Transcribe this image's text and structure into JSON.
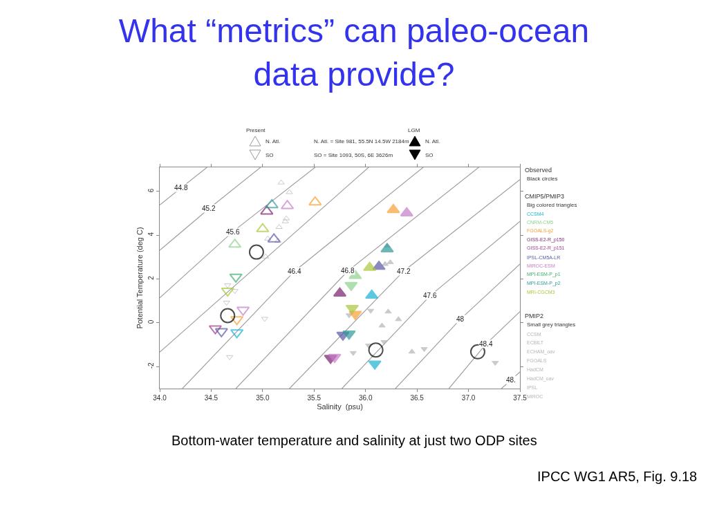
{
  "chart_data": {
    "type": "scatter",
    "title": "What “metrics” can paleo-ocean data provide?",
    "xlabel": "Salinity  (psu)",
    "ylabel": "Potential Temperature (deg C)",
    "xlim": [
      34.0,
      37.5
    ],
    "ylim": [
      -3,
      7.1
    ],
    "xticks": [
      {
        "value": 34.0,
        "label": "34.0"
      },
      {
        "value": 34.5,
        "label": "34.5"
      },
      {
        "value": 35.0,
        "label": "35.0"
      },
      {
        "value": 35.5,
        "label": "35.5"
      },
      {
        "value": 36.0,
        "label": "36.0"
      },
      {
        "value": 36.5,
        "label": "36.5"
      },
      {
        "value": 37.0,
        "label": "37.0"
      },
      {
        "value": 37.5,
        "label": "37.5"
      }
    ],
    "yticks": [
      -2,
      0,
      2,
      4,
      6
    ],
    "legend": "right",
    "series": [
      {
        "type": "line",
        "name": "44.8",
        "color": "#a0a0a0",
        "x": [
          34.0,
          34.21,
          34.46
        ],
        "values": [
          5.38,
          6.17,
          7.1
        ]
      },
      {
        "type": "line",
        "name": "45.2",
        "color": "#a0a0a0",
        "x": [
          34.0,
          34.48,
          34.98
        ],
        "values": [
          3.31,
          5.22,
          7.1
        ]
      },
      {
        "type": "line",
        "name": "45.6",
        "color": "#a0a0a0",
        "x": [
          34.0,
          34.71,
          35.51
        ],
        "values": [
          1.14,
          4.16,
          7.1
        ]
      },
      {
        "type": "line",
        "color": "#a0a0a0",
        "x": [
          34.0,
          36.03
        ],
        "values": [
          -1.34,
          7.1
        ]
      },
      {
        "type": "line",
        "name": "46.4",
        "color": "#a0a0a0",
        "x": [
          34.22,
          35.31,
          36.56
        ],
        "values": [
          -3,
          2.36,
          7.1
        ]
      },
      {
        "type": "line",
        "name": "46.8",
        "color": "#a0a0a0",
        "x": [
          34.74,
          35.83,
          37.1
        ],
        "values": [
          -3,
          2.38,
          7.1
        ]
      },
      {
        "type": "line",
        "name": "47.2",
        "color": "#a0a0a0",
        "x": [
          35.26,
          36.37,
          37.5
        ],
        "values": [
          -3,
          2.36,
          6.54
        ]
      },
      {
        "type": "line",
        "name": "47.6",
        "color": "#a0a0a0",
        "x": [
          35.77,
          36.63,
          37.5
        ],
        "values": [
          -3,
          1.25,
          4.63
        ]
      },
      {
        "type": "line",
        "name": "48",
        "color": "#a0a0a0",
        "x": [
          36.29,
          36.92,
          37.5
        ],
        "values": [
          -3,
          0.16,
          2.68
        ]
      },
      {
        "type": "line",
        "name": "48.4",
        "color": "#a0a0a0",
        "x": [
          36.81,
          37.17,
          37.5
        ],
        "values": [
          -3,
          -0.97,
          0.51
        ]
      },
      {
        "type": "line",
        "name": "48.",
        "color": "#a0a0a0",
        "x": [
          37.32,
          37.41,
          37.5
        ],
        "values": [
          -3,
          -2.62,
          -2.24
        ]
      },
      {
        "marker": "triangle-open",
        "color": "#b4b4b4",
        "x": [
          35.18,
          35.26,
          35.23,
          35.22,
          35.16,
          35.05,
          35.15,
          35.03
        ],
        "values": [
          6.4,
          5.96,
          4.76,
          4.63,
          4.37,
          3.84,
          3.74,
          3.02
        ]
      },
      {
        "marker": "triangle-down-open",
        "color": "#b4b4b4",
        "x": [
          35.02,
          34.68,
          34.66,
          34.65,
          34.73
        ],
        "values": [
          0.19,
          -1.56,
          1.72,
          0.93,
          1.46
        ]
      },
      {
        "marker": "triangle",
        "color": "#b4b4b4",
        "x": [
          36.21,
          36.24,
          36.19,
          36.22,
          36.32,
          36.16,
          36.45
        ],
        "values": [
          3.52,
          2.76,
          2.68,
          0.51,
          0.16,
          -0.13,
          -1.32
        ]
      },
      {
        "marker": "triangle-down",
        "color": "#b4b4b4",
        "x": [
          36.05,
          35.84,
          36.18,
          35.88,
          36.03,
          36.57,
          37.26
        ],
        "values": [
          0.56,
          0.35,
          -0.87,
          -1.37,
          -1.03,
          -1.19,
          -1.82
        ]
      },
      {
        "name": "CCSM4",
        "color": "#1ab2d4",
        "marker": [
          "triangle-down-open",
          "triangle",
          "triangle-down"
        ],
        "x": [
          34.75,
          36.06,
          36.09
        ],
        "values": [
          -0.44,
          1.25,
          -1.87
        ]
      },
      {
        "name": "CNRM-CM5",
        "color": "#8fd18f",
        "marker": [
          "triangle-open",
          "triangle",
          "triangle-down"
        ],
        "x": [
          34.73,
          35.9,
          35.86
        ],
        "values": [
          3.58,
          2.15,
          1.72
        ]
      },
      {
        "name": "FGOALS-g2",
        "color": "#f7a035",
        "marker": [
          "triangle-open",
          "triangle-down-open",
          "triangle",
          "triangle-down"
        ],
        "x": [
          35.51,
          34.75,
          36.27,
          35.9
        ],
        "values": [
          5.51,
          0.16,
          5.16,
          0.4
        ]
      },
      {
        "name": "GISS-E2-R_p150",
        "color": "#7a1f6e",
        "marker": [
          "triangle-open",
          "triangle",
          "triangle-down"
        ],
        "x": [
          35.04,
          35.75,
          35.66
        ],
        "values": [
          5.09,
          1.35,
          -1.61
        ]
      },
      {
        "name": "GISS-E2-R_p151",
        "color": "#9c3f8c",
        "marker": [
          "triangle-down-open"
        ],
        "x": [
          34.54
        ],
        "values": [
          -0.26
        ]
      },
      {
        "name": "IPSL-CM5A-LR",
        "color": "#5a5aa8",
        "marker": [
          "triangle-open",
          "triangle-down-open",
          "triangle",
          "triangle-down"
        ],
        "x": [
          35.11,
          34.6,
          36.13,
          35.78
        ],
        "values": [
          3.82,
          -0.39,
          2.57,
          -0.55
        ]
      },
      {
        "name": "MIROC-ESM",
        "color": "#c77cc7",
        "marker": [
          "triangle-open",
          "triangle-down-open",
          "triangle",
          "triangle-down"
        ],
        "x": [
          35.24,
          34.81,
          36.4,
          35.7
        ],
        "values": [
          5.34,
          0.59,
          5.01,
          -1.56
        ]
      },
      {
        "name": "MPI-ESM-P_p1",
        "color": "#3fae6e",
        "marker": [
          "triangle-down-open"
        ],
        "x": [
          34.74
        ],
        "values": [
          2.1
        ]
      },
      {
        "name": "MPI-ESM-P_p2",
        "color": "#2f9a9a",
        "marker": [
          "triangle-open",
          "triangle",
          "triangle-down"
        ],
        "x": [
          35.09,
          36.21,
          35.84
        ],
        "values": [
          5.38,
          3.37,
          -0.5
        ]
      },
      {
        "name": "MRI-CGCM3",
        "color": "#a8c83c",
        "marker": [
          "triangle-open",
          "triangle-down-open",
          "triangle",
          "triangle-down"
        ],
        "x": [
          35.0,
          34.66,
          36.04,
          35.87
        ],
        "values": [
          4.29,
          1.46,
          2.52,
          0.67
        ]
      },
      {
        "marker": "circle-open",
        "color": "#000000",
        "x": [
          34.94,
          34.66,
          36.1,
          37.09
        ],
        "values": [
          3.23,
          0.33,
          -1.24,
          -1.32
        ]
      }
    ],
    "annotations": [
      "Present",
      "LGM",
      "N. Atl.",
      "SO",
      "N. Atl.",
      "SO",
      "N. Atl. = Site 981, 55.5N 14.5W 2184m",
      "SO = Site 1093, 50S, 6E 3626m",
      "Observed",
      "Black circles",
      "CMIP5/PMIP3",
      "Big colored triangles",
      "PMIP2",
      "Small grey triangles",
      "CCSM",
      "ECBILT",
      "ECHAM_oav",
      "FGOALS",
      "HadCM",
      "HadCM_oav",
      "IPSL",
      "MIROC",
      "Bottom-water temperature and salinity at just two ODP sites",
      "IPCC WG1 AR5, Fig. 9.18"
    ]
  }
}
